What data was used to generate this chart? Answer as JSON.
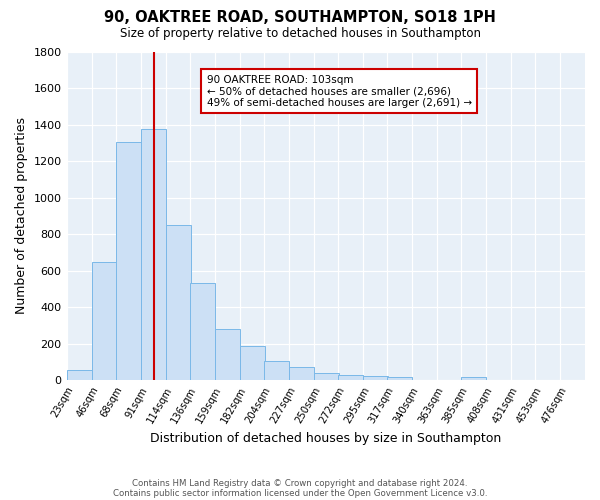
{
  "title": "90, OAKTREE ROAD, SOUTHAMPTON, SO18 1PH",
  "subtitle": "Size of property relative to detached houses in Southampton",
  "xlabel": "Distribution of detached houses by size in Southampton",
  "ylabel": "Number of detached properties",
  "bar_color": "#cce0f5",
  "bar_edge_color": "#7ab8e8",
  "bg_color": "#e8f0f8",
  "vline_x": 103,
  "vline_color": "#cc0000",
  "categories": [
    "23sqm",
    "46sqm",
    "68sqm",
    "91sqm",
    "114sqm",
    "136sqm",
    "159sqm",
    "182sqm",
    "204sqm",
    "227sqm",
    "250sqm",
    "272sqm",
    "295sqm",
    "317sqm",
    "340sqm",
    "363sqm",
    "385sqm",
    "408sqm",
    "431sqm",
    "453sqm",
    "476sqm"
  ],
  "bin_edges": [
    23,
    46,
    68,
    91,
    114,
    136,
    159,
    182,
    204,
    227,
    250,
    272,
    295,
    317,
    340,
    363,
    385,
    408,
    431,
    453,
    476
  ],
  "bin_width": 23,
  "values": [
    55,
    645,
    1305,
    1375,
    850,
    530,
    280,
    185,
    105,
    70,
    40,
    30,
    25,
    15,
    0,
    0,
    15,
    0,
    0,
    0,
    0
  ],
  "ylim": [
    0,
    1800
  ],
  "yticks": [
    0,
    200,
    400,
    600,
    800,
    1000,
    1200,
    1400,
    1600,
    1800
  ],
  "annotation_line1": "90 OAKTREE ROAD: 103sqm",
  "annotation_line2": "← 50% of detached houses are smaller (2,696)",
  "annotation_line3": "49% of semi-detached houses are larger (2,691) →",
  "footer1": "Contains HM Land Registry data © Crown copyright and database right 2024.",
  "footer2": "Contains public sector information licensed under the Open Government Licence v3.0."
}
